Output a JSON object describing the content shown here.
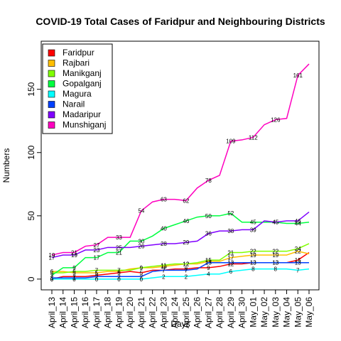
{
  "chart_data": {
    "type": "line",
    "title": "COVID-19 Total Cases of Faridpur and Neighbouring Districts",
    "xlabel": "Days",
    "ylabel": "Numbers",
    "categories": [
      "April_13",
      "April_14",
      "April_15",
      "April_16",
      "April_17",
      "April_18",
      "April_19",
      "April_20",
      "April_21",
      "April_22",
      "April_23",
      "April_24",
      "April_25",
      "April_26",
      "April_27",
      "April_28",
      "April_29",
      "April_30",
      "May_01",
      "May_02",
      "May_03",
      "May_04",
      "May_05",
      "May_06"
    ],
    "series": [
      {
        "name": "Faridpur",
        "color": "#ff0000",
        "values": [
          0,
          2,
          2,
          2,
          3,
          4,
          5,
          6,
          5,
          7,
          7,
          8,
          8,
          9,
          9,
          10,
          12,
          12,
          13,
          13,
          13,
          13,
          15,
          21
        ]
      },
      {
        "name": "Rajbari",
        "color": "#ffbf00",
        "values": [
          6,
          6,
          5,
          5,
          5,
          6,
          6,
          8,
          9,
          9,
          10,
          11,
          12,
          12,
          14,
          14,
          17,
          18,
          19,
          19,
          19,
          19,
          22,
          20
        ]
      },
      {
        "name": "Manikganj",
        "color": "#80ff00",
        "values": [
          5,
          5,
          6,
          6,
          7,
          7,
          7,
          7,
          9,
          10,
          11,
          12,
          12,
          13,
          15,
          15,
          21,
          21,
          22,
          22,
          22,
          22,
          24,
          28
        ]
      },
      {
        "name": "Gopalganj",
        "color": "#00ff40",
        "values": [
          3,
          9,
          9,
          17,
          17,
          21,
          21,
          30,
          30,
          34,
          40,
          43,
          46,
          49,
          50,
          50,
          52,
          45,
          45,
          45,
          45,
          44,
          44,
          45
        ]
      },
      {
        "name": "Magura",
        "color": "#00ffff",
        "values": [
          0,
          0,
          0,
          0,
          0,
          0,
          0,
          0,
          0,
          1,
          2,
          2,
          2,
          3,
          4,
          4,
          6,
          7,
          8,
          8,
          8,
          8,
          7,
          8
        ]
      },
      {
        "name": "Narail",
        "color": "#0040ff",
        "values": [
          1,
          1,
          1,
          1,
          2,
          2,
          2,
          2,
          2,
          6,
          7,
          7,
          7,
          8,
          13,
          13,
          13,
          13,
          13,
          13,
          13,
          13,
          13,
          13
        ]
      },
      {
        "name": "Madaripur",
        "color": "#8000ff",
        "values": [
          17,
          19,
          19,
          23,
          23,
          25,
          25,
          25,
          26,
          27,
          28,
          28,
          29,
          30,
          36,
          38,
          38,
          39,
          39,
          46,
          45,
          46,
          46,
          53
        ]
      },
      {
        "name": "Munshiganj",
        "color": "#ff00bf",
        "values": [
          19,
          21,
          21,
          26,
          27,
          33,
          33,
          33,
          54,
          61,
          63,
          63,
          62,
          72,
          78,
          82,
          109,
          110,
          112,
          122,
          126,
          127,
          161,
          170
        ]
      }
    ],
    "ylim": [
      -8.5,
      188
    ],
    "yticks": [
      0,
      50,
      100,
      150
    ],
    "legend": "upper left"
  }
}
